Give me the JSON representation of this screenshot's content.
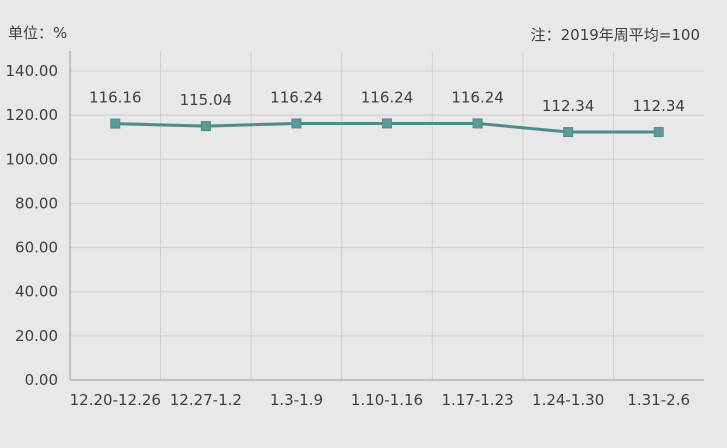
{
  "header": {
    "unit_label": "单位：%",
    "note_label": "注：2019年周平均=100"
  },
  "colors": {
    "background": "#e8e8e8",
    "line": "#4f8c8c",
    "marker": "#5a9a9a",
    "grid": "#cfcfcf",
    "axis": "#9a9a9a",
    "text": "#404040"
  },
  "chart_data": {
    "type": "line",
    "categories": [
      "12.20-12.26",
      "12.27-1.2",
      "1.3-1.9",
      "1.10-1.16",
      "1.17-1.23",
      "1.24-1.30",
      "1.31-2.6"
    ],
    "series": [
      {
        "values": [
          116.16,
          115.04,
          116.24,
          116.24,
          116.24,
          112.34,
          112.34
        ]
      }
    ],
    "data_labels": [
      "116.16",
      "115.04",
      "116.24",
      "116.24",
      "116.24",
      "112.34",
      "112.34"
    ],
    "y_ticks": [
      "0.00",
      "20.00",
      "40.00",
      "60.00",
      "80.00",
      "100.00",
      "120.00",
      "140.00"
    ],
    "ylim": [
      0,
      140
    ],
    "grid": true,
    "marker": "square"
  }
}
